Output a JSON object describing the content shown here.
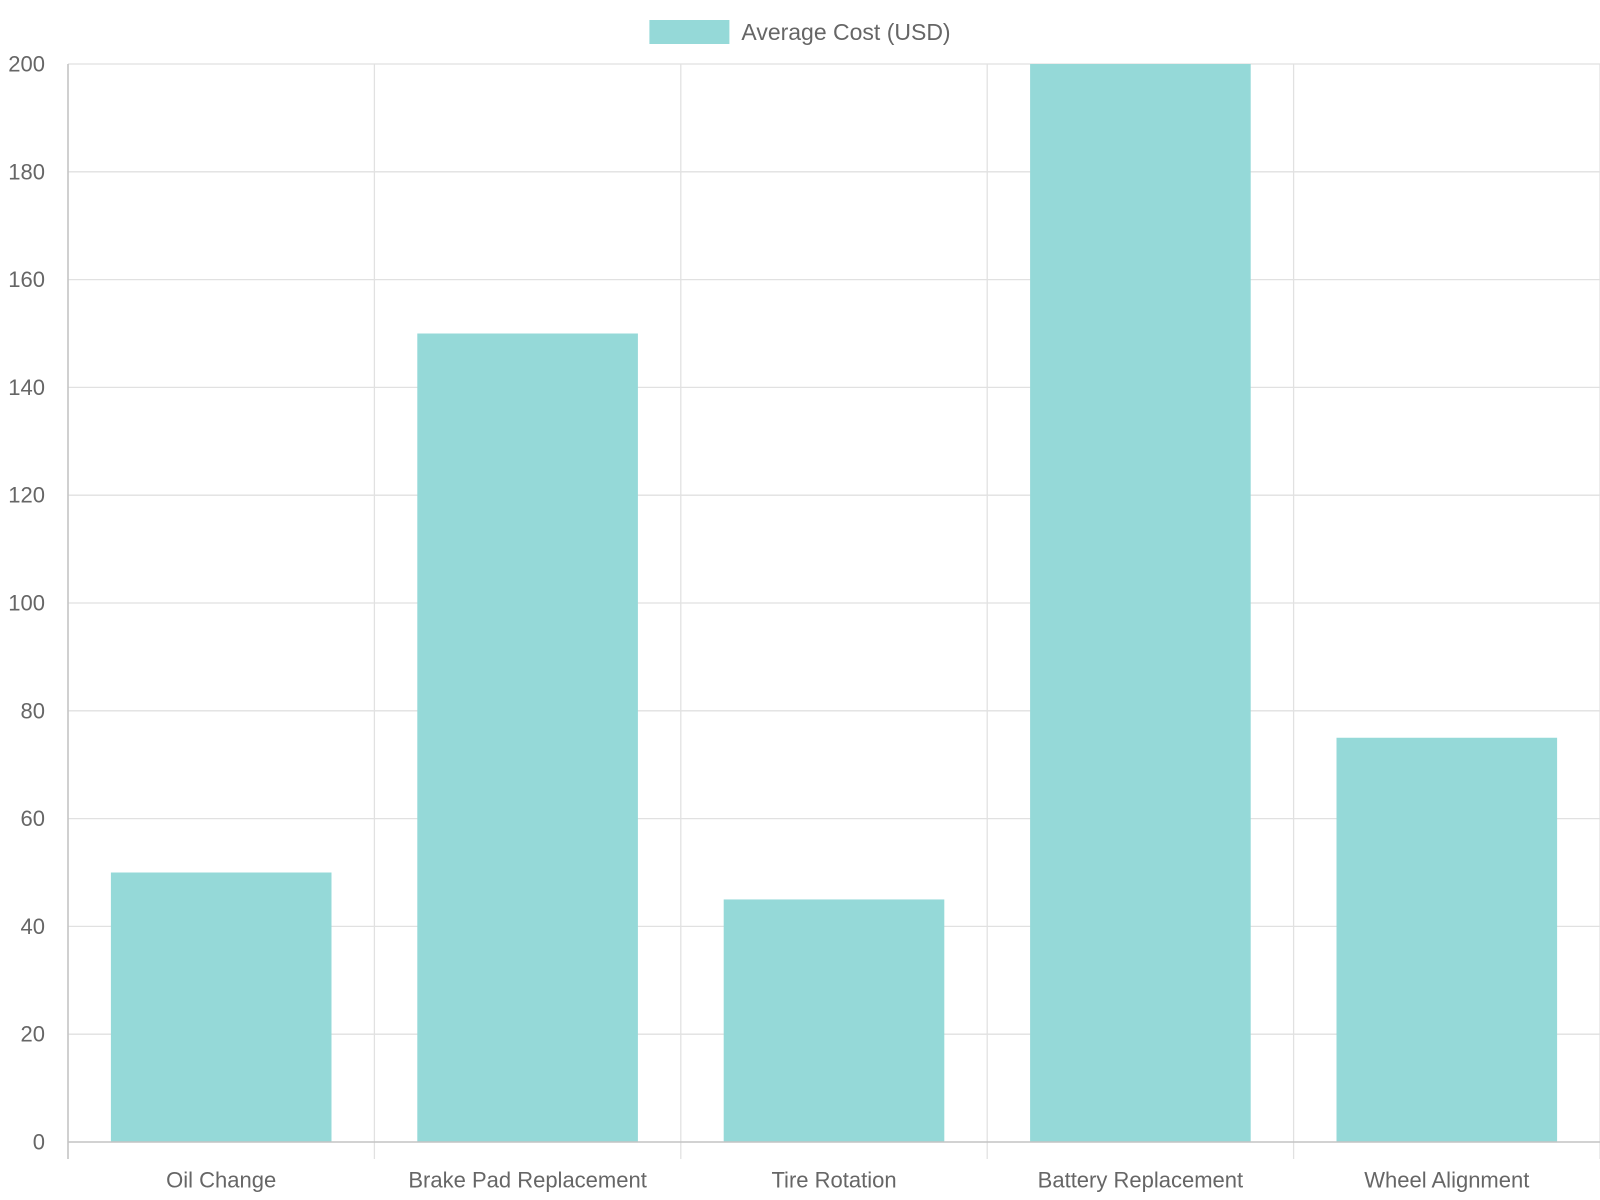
{
  "chart_data": {
    "type": "bar",
    "categories": [
      "Oil Change",
      "Brake Pad Replacement",
      "Tire Rotation",
      "Battery Replacement",
      "Wheel Alignment"
    ],
    "series": [
      {
        "name": "Average Cost (USD)",
        "values": [
          50,
          150,
          45,
          200,
          75
        ],
        "color": "#95d9d8"
      }
    ],
    "title": "",
    "xlabel": "",
    "ylabel": "",
    "ylim": [
      0,
      200
    ],
    "yticks": [
      0,
      20,
      40,
      60,
      80,
      100,
      120,
      140,
      160,
      180,
      200
    ],
    "grid": true,
    "legend_position": "top-center"
  }
}
